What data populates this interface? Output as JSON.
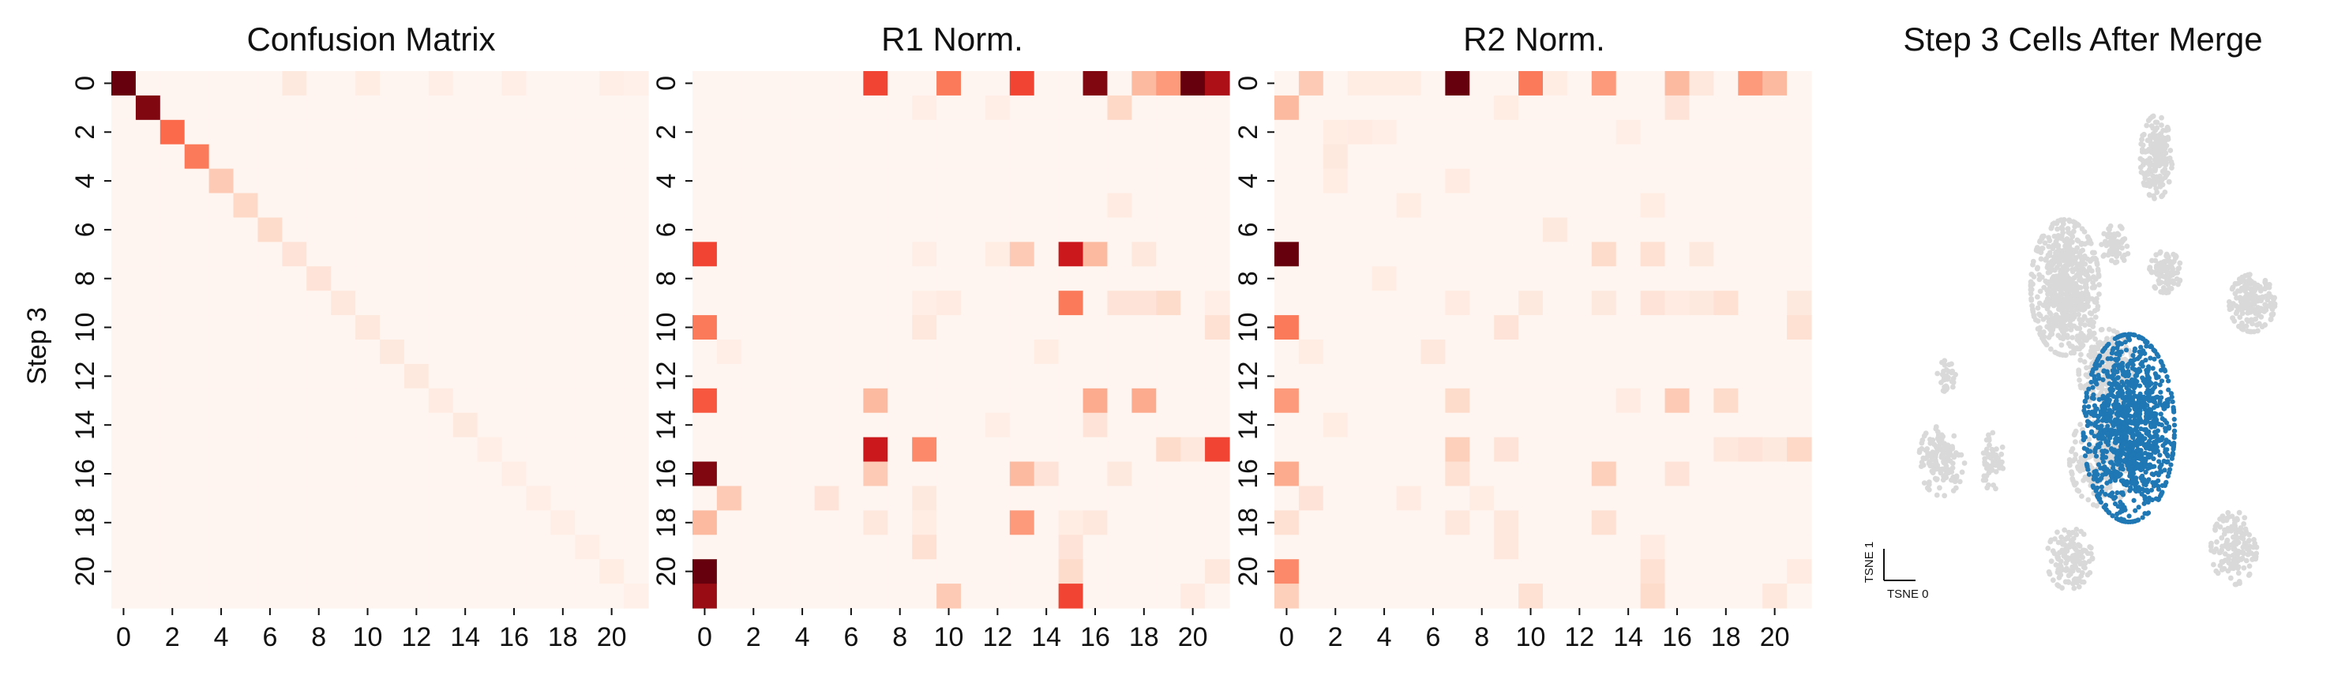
{
  "figure": {
    "panels": [
      {
        "title": "Confusion Matrix"
      },
      {
        "title": "R1 Norm."
      },
      {
        "title": "R2 Norm."
      },
      {
        "title": "Step 3 Cells After Merge"
      }
    ],
    "y_axis_label": "Step 3",
    "tsne_x_label": "TSNE 0",
    "tsne_y_label": "TSNE 1"
  },
  "colors": {
    "reds_scale": [
      "#fff5f0",
      "#fee0d2",
      "#fcbba1",
      "#fc9272",
      "#fb6a4a",
      "#ef3b2c",
      "#cb181d",
      "#a50f15",
      "#67000d"
    ],
    "highlight_cells": "#1f77b4",
    "other_cells": "#d9d9d9"
  },
  "chart_data": [
    {
      "type": "heatmap",
      "title": "Confusion Matrix",
      "ylabel": "Step 3",
      "xlabel": "",
      "xticklabels": [
        "0",
        "2",
        "4",
        "6",
        "8",
        "10",
        "12",
        "14",
        "16",
        "18",
        "20"
      ],
      "yticklabels": [
        "0",
        "2",
        "4",
        "6",
        "8",
        "10",
        "12",
        "14",
        "16",
        "18",
        "20"
      ],
      "n_rows": 22,
      "n_cols": 22,
      "value_range": [
        0,
        1
      ],
      "cells": [
        [
          0,
          0,
          1.0
        ],
        [
          1,
          1,
          0.95
        ],
        [
          2,
          2,
          0.5
        ],
        [
          3,
          3,
          0.45
        ],
        [
          4,
          4,
          0.2
        ],
        [
          5,
          5,
          0.15
        ],
        [
          6,
          6,
          0.14
        ],
        [
          7,
          7,
          0.1
        ],
        [
          8,
          8,
          0.1
        ],
        [
          9,
          9,
          0.08
        ],
        [
          10,
          10,
          0.08
        ],
        [
          11,
          11,
          0.07
        ],
        [
          12,
          12,
          0.07
        ],
        [
          13,
          13,
          0.06
        ],
        [
          14,
          14,
          0.07
        ],
        [
          15,
          15,
          0.04
        ],
        [
          16,
          16,
          0.04
        ],
        [
          17,
          17,
          0.04
        ],
        [
          18,
          18,
          0.04
        ],
        [
          19,
          19,
          0.04
        ],
        [
          20,
          20,
          0.05
        ],
        [
          21,
          21,
          0.03
        ],
        [
          0,
          7,
          0.07
        ],
        [
          0,
          10,
          0.05
        ],
        [
          0,
          13,
          0.04
        ],
        [
          0,
          16,
          0.04
        ],
        [
          0,
          20,
          0.04
        ],
        [
          0,
          21,
          0.03
        ]
      ]
    },
    {
      "type": "heatmap",
      "title": "R1 Norm.",
      "ylabel": "",
      "xlabel": "",
      "xticklabels": [
        "0",
        "2",
        "4",
        "6",
        "8",
        "10",
        "12",
        "14",
        "16",
        "18",
        "20"
      ],
      "yticklabels": [
        "0",
        "2",
        "4",
        "6",
        "8",
        "10",
        "12",
        "14",
        "16",
        "18",
        "20"
      ],
      "n_rows": 22,
      "n_cols": 22,
      "value_range": [
        0,
        1
      ],
      "cells": [
        [
          0,
          7,
          0.6
        ],
        [
          0,
          10,
          0.45
        ],
        [
          0,
          13,
          0.6
        ],
        [
          0,
          16,
          0.95
        ],
        [
          0,
          18,
          0.25
        ],
        [
          0,
          19,
          0.35
        ],
        [
          0,
          20,
          1.0
        ],
        [
          0,
          21,
          0.85
        ],
        [
          1,
          17,
          0.15
        ],
        [
          1,
          9,
          0.04
        ],
        [
          1,
          12,
          0.04
        ],
        [
          5,
          17,
          0.06
        ],
        [
          7,
          0,
          0.6
        ],
        [
          7,
          12,
          0.05
        ],
        [
          7,
          13,
          0.2
        ],
        [
          7,
          15,
          0.75
        ],
        [
          7,
          16,
          0.25
        ],
        [
          7,
          18,
          0.08
        ],
        [
          7,
          9,
          0.04
        ],
        [
          9,
          9,
          0.04
        ],
        [
          9,
          10,
          0.06
        ],
        [
          9,
          15,
          0.45
        ],
        [
          9,
          17,
          0.1
        ],
        [
          9,
          18,
          0.1
        ],
        [
          9,
          19,
          0.14
        ],
        [
          9,
          21,
          0.04
        ],
        [
          10,
          0,
          0.45
        ],
        [
          10,
          9,
          0.08
        ],
        [
          10,
          21,
          0.12
        ],
        [
          11,
          1,
          0.04
        ],
        [
          11,
          14,
          0.05
        ],
        [
          13,
          0,
          0.55
        ],
        [
          13,
          7,
          0.25
        ],
        [
          13,
          16,
          0.3
        ],
        [
          13,
          18,
          0.3
        ],
        [
          14,
          12,
          0.04
        ],
        [
          14,
          16,
          0.1
        ],
        [
          15,
          7,
          0.75
        ],
        [
          15,
          9,
          0.4
        ],
        [
          15,
          19,
          0.14
        ],
        [
          15,
          20,
          0.08
        ],
        [
          15,
          21,
          0.6
        ],
        [
          16,
          0,
          0.95
        ],
        [
          16,
          7,
          0.2
        ],
        [
          16,
          13,
          0.25
        ],
        [
          16,
          14,
          0.1
        ],
        [
          16,
          17,
          0.07
        ],
        [
          17,
          1,
          0.2
        ],
        [
          17,
          5,
          0.1
        ],
        [
          17,
          9,
          0.07
        ],
        [
          18,
          0,
          0.25
        ],
        [
          18,
          7,
          0.08
        ],
        [
          18,
          9,
          0.05
        ],
        [
          18,
          13,
          0.35
        ],
        [
          18,
          15,
          0.05
        ],
        [
          18,
          16,
          0.08
        ],
        [
          19,
          9,
          0.12
        ],
        [
          19,
          15,
          0.1
        ],
        [
          20,
          0,
          1.0
        ],
        [
          20,
          15,
          0.14
        ],
        [
          20,
          21,
          0.08
        ],
        [
          21,
          0,
          0.9
        ],
        [
          21,
          10,
          0.2
        ],
        [
          21,
          15,
          0.6
        ],
        [
          21,
          20,
          0.06
        ]
      ]
    },
    {
      "type": "heatmap",
      "title": "R2 Norm.",
      "ylabel": "",
      "xlabel": "",
      "xticklabels": [
        "0",
        "2",
        "4",
        "6",
        "8",
        "10",
        "12",
        "14",
        "16",
        "18",
        "20"
      ],
      "yticklabels": [
        "0",
        "2",
        "4",
        "6",
        "8",
        "10",
        "12",
        "14",
        "16",
        "18",
        "20"
      ],
      "n_rows": 22,
      "n_cols": 22,
      "value_range": [
        0,
        1
      ],
      "cells": [
        [
          0,
          1,
          0.2
        ],
        [
          0,
          3,
          0.05
        ],
        [
          0,
          4,
          0.05
        ],
        [
          0,
          5,
          0.05
        ],
        [
          0,
          7,
          1.0
        ],
        [
          0,
          10,
          0.45
        ],
        [
          0,
          11,
          0.05
        ],
        [
          0,
          13,
          0.35
        ],
        [
          0,
          16,
          0.25
        ],
        [
          0,
          17,
          0.08
        ],
        [
          0,
          19,
          0.35
        ],
        [
          0,
          20,
          0.25
        ],
        [
          1,
          0,
          0.25
        ],
        [
          1,
          9,
          0.05
        ],
        [
          1,
          16,
          0.1
        ],
        [
          2,
          2,
          0.05
        ],
        [
          2,
          3,
          0.06
        ],
        [
          2,
          4,
          0.04
        ],
        [
          2,
          14,
          0.04
        ],
        [
          3,
          2,
          0.07
        ],
        [
          4,
          2,
          0.05
        ],
        [
          4,
          7,
          0.06
        ],
        [
          5,
          5,
          0.05
        ],
        [
          5,
          15,
          0.05
        ],
        [
          6,
          11,
          0.07
        ],
        [
          7,
          0,
          1.0
        ],
        [
          7,
          13,
          0.14
        ],
        [
          7,
          15,
          0.12
        ],
        [
          7,
          17,
          0.07
        ],
        [
          8,
          4,
          0.05
        ],
        [
          9,
          7,
          0.06
        ],
        [
          9,
          10,
          0.07
        ],
        [
          9,
          13,
          0.07
        ],
        [
          9,
          15,
          0.1
        ],
        [
          9,
          16,
          0.06
        ],
        [
          9,
          17,
          0.07
        ],
        [
          9,
          18,
          0.12
        ],
        [
          9,
          21,
          0.07
        ],
        [
          10,
          0,
          0.45
        ],
        [
          10,
          9,
          0.1
        ],
        [
          10,
          21,
          0.12
        ],
        [
          11,
          1,
          0.05
        ],
        [
          11,
          6,
          0.08
        ],
        [
          13,
          0,
          0.35
        ],
        [
          13,
          7,
          0.14
        ],
        [
          13,
          14,
          0.06
        ],
        [
          13,
          16,
          0.2
        ],
        [
          13,
          18,
          0.14
        ],
        [
          14,
          2,
          0.05
        ],
        [
          15,
          7,
          0.18
        ],
        [
          15,
          9,
          0.1
        ],
        [
          15,
          18,
          0.08
        ],
        [
          15,
          19,
          0.1
        ],
        [
          15,
          20,
          0.07
        ],
        [
          15,
          21,
          0.15
        ],
        [
          16,
          0,
          0.3
        ],
        [
          16,
          7,
          0.12
        ],
        [
          16,
          13,
          0.18
        ],
        [
          16,
          16,
          0.1
        ],
        [
          17,
          1,
          0.1
        ],
        [
          17,
          5,
          0.06
        ],
        [
          17,
          8,
          0.05
        ],
        [
          18,
          0,
          0.12
        ],
        [
          18,
          7,
          0.08
        ],
        [
          18,
          9,
          0.08
        ],
        [
          18,
          13,
          0.12
        ],
        [
          19,
          9,
          0.08
        ],
        [
          19,
          15,
          0.06
        ],
        [
          20,
          0,
          0.4
        ],
        [
          20,
          15,
          0.12
        ],
        [
          20,
          21,
          0.06
        ],
        [
          21,
          0,
          0.18
        ],
        [
          21,
          10,
          0.12
        ],
        [
          21,
          15,
          0.14
        ],
        [
          21,
          20,
          0.08
        ]
      ]
    },
    {
      "type": "scatter",
      "title": "Step 3 Cells After Merge",
      "xlabel": "TSNE 0",
      "ylabel": "TSNE 1",
      "grid": false,
      "ticks": false,
      "series": [
        {
          "color": "#d9d9d9",
          "clusters": [
            {
              "cx": 0.29,
              "cy": 0.85,
              "rx": 0.035,
              "ry": 0.08,
              "n": 200
            },
            {
              "cx": 0.09,
              "cy": 0.6,
              "rx": 0.075,
              "ry": 0.13,
              "n": 650
            },
            {
              "cx": 0.2,
              "cy": 0.68,
              "rx": 0.03,
              "ry": 0.04,
              "n": 70
            },
            {
              "cx": 0.31,
              "cy": 0.63,
              "rx": 0.035,
              "ry": 0.04,
              "n": 100
            },
            {
              "cx": 0.5,
              "cy": 0.57,
              "rx": 0.05,
              "ry": 0.055,
              "n": 180
            },
            {
              "cx": 0.18,
              "cy": 0.44,
              "rx": 0.06,
              "ry": 0.08,
              "n": 220
            },
            {
              "cx": 0.17,
              "cy": 0.27,
              "rx": 0.07,
              "ry": 0.09,
              "n": 260
            },
            {
              "cx": -0.18,
              "cy": 0.27,
              "rx": 0.05,
              "ry": 0.07,
              "n": 130
            },
            {
              "cx": -0.07,
              "cy": 0.27,
              "rx": 0.025,
              "ry": 0.06,
              "n": 60
            },
            {
              "cx": -0.17,
              "cy": 0.43,
              "rx": 0.02,
              "ry": 0.03,
              "n": 35
            },
            {
              "cx": 0.1,
              "cy": 0.08,
              "rx": 0.05,
              "ry": 0.06,
              "n": 130
            },
            {
              "cx": 0.46,
              "cy": 0.1,
              "rx": 0.05,
              "ry": 0.07,
              "n": 150
            }
          ]
        },
        {
          "color": "#1f77b4",
          "clusters": [
            {
              "cx": 0.23,
              "cy": 0.33,
              "rx": 0.1,
              "ry": 0.18,
              "n": 1100
            }
          ]
        }
      ]
    }
  ]
}
